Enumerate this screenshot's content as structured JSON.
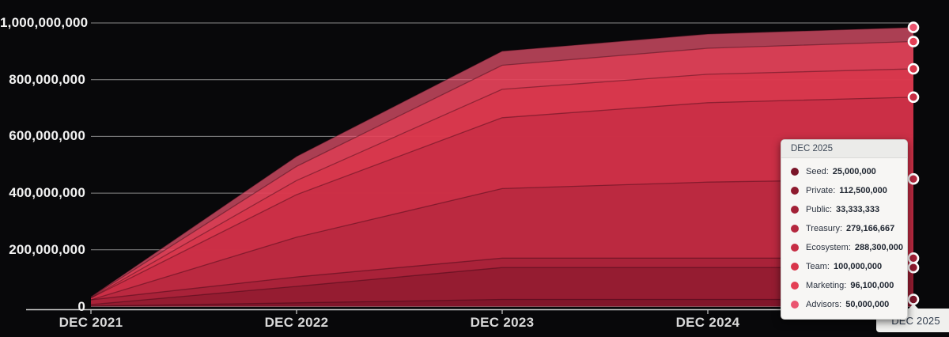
{
  "chart_data": {
    "type": "area",
    "stacking": "normal",
    "title": "",
    "xlabel": "",
    "ylabel": "",
    "grid": true,
    "legend_position": "none",
    "ylim": [
      0,
      1000000000
    ],
    "y_ticks": [
      0,
      200000000,
      400000000,
      600000000,
      800000000,
      1000000000
    ],
    "y_tick_labels": [
      "0",
      "200,000,000",
      "400,000,000",
      "600,000,000",
      "800,000,000",
      "1,000,000,000"
    ],
    "x_categories": [
      "DEC 2021",
      "DEC 2022",
      "DEC 2023",
      "DEC 2024",
      "DEC 2025"
    ],
    "series": [
      {
        "name": "Seed",
        "color": "#7a1428",
        "values": [
          1500000,
          13000000,
          25000000,
          25000000,
          25000000
        ]
      },
      {
        "name": "Private",
        "color": "#8e1a2e",
        "values": [
          5600000,
          58000000,
          112500000,
          112500000,
          112500000
        ]
      },
      {
        "name": "Public",
        "color": "#a22036",
        "values": [
          16700000,
          33333333,
          33333333,
          33333333,
          33333333
        ]
      },
      {
        "name": "Treasury",
        "color": "#b4273e",
        "values": [
          0,
          140000000,
          245000000,
          268000000,
          279166667
        ]
      },
      {
        "name": "Ecosystem",
        "color": "#c62d44",
        "values": [
          7000000,
          150000000,
          250000000,
          280000000,
          288300000
        ]
      },
      {
        "name": "Team",
        "color": "#d8354a",
        "values": [
          0,
          50000000,
          100000000,
          100000000,
          100000000
        ]
      },
      {
        "name": "Marketing",
        "color": "#e43f55",
        "values": [
          2500000,
          50000000,
          85000000,
          92000000,
          96100000
        ]
      },
      {
        "name": "Advisors",
        "color": "#ea5570",
        "values": [
          1500000,
          35000000,
          50000000,
          50000000,
          50000000
        ]
      }
    ],
    "fill_opacity": 0.72
  },
  "tooltip": {
    "title": "DEC 2025",
    "rows": [
      {
        "label": "Seed",
        "value": "25,000,000"
      },
      {
        "label": "Private",
        "value": "112,500,000"
      },
      {
        "label": "Public",
        "value": "33,333,333"
      },
      {
        "label": "Treasury",
        "value": "279,166,667"
      },
      {
        "label": "Ecosystem",
        "value": "288,300,000"
      },
      {
        "label": "Team",
        "value": "100,000,000"
      },
      {
        "label": "Marketing",
        "value": "96,100,000"
      },
      {
        "label": "Advisors",
        "value": "50,000,000"
      }
    ]
  },
  "axis_hover": {
    "label": "DEC 2025"
  },
  "style": {
    "background": "#08080a",
    "gridline_color": "#8a8a8a",
    "axis_line_color": "#cfcfcf",
    "y_label_color": "#f2f2f2",
    "x_label_color": "#d9d9d9",
    "marker_ring_color": "#ffffff",
    "boundary_line_color": "rgba(38,0,12,0.38)"
  }
}
